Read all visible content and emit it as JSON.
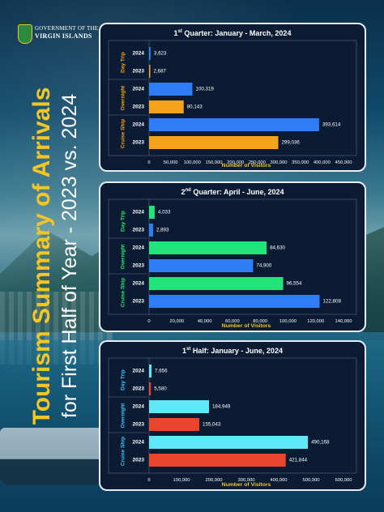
{
  "header": {
    "logo_line1": "GOVERNMENT OF THE",
    "logo_line2": "VIRGIN ISLANDS",
    "title_line1": "Tourism Summary of Arrivals",
    "title_line2": "for First Half of Year - 2023 vs. 2024"
  },
  "colors": {
    "title_yellow": "#f5c524",
    "panel_bg": "#0b1b33",
    "label_yellow": "#f5a31a",
    "label_green": "#2ee86a",
    "label_cyan": "#41c6f0"
  },
  "chart_data": [
    {
      "type": "bar",
      "orientation": "horizontal",
      "title_prefix": "1",
      "title_sup": "st",
      "title_rest": " Quarter: January - March, 2024",
      "xlabel": "Number of Visitors",
      "xlim": [
        0,
        450000
      ],
      "xticks": [
        "0",
        "50,000",
        "100,000",
        "150,000",
        "200,000",
        "250,000",
        "300,000",
        "350,000",
        "400,000",
        "450,000"
      ],
      "groups": [
        "Day Trip",
        "Overnight",
        "Cruise Ship"
      ],
      "group_label_color": "#f5a31a",
      "bars": [
        {
          "group": "Day Trip",
          "year": "2024",
          "value": 3623,
          "label": "3,623",
          "color": "#2f7df6"
        },
        {
          "group": "Day Trip",
          "year": "2023",
          "value": 2687,
          "label": "2,687",
          "color": "#f5a31a"
        },
        {
          "group": "Overnight",
          "year": "2024",
          "value": 100319,
          "label": "100,319",
          "color": "#2f7df6"
        },
        {
          "group": "Overnight",
          "year": "2023",
          "value": 80143,
          "label": "80,143",
          "color": "#f5a31a"
        },
        {
          "group": "Cruise Ship",
          "year": "2024",
          "value": 393614,
          "label": "393,614",
          "color": "#2f7df6"
        },
        {
          "group": "Cruise Ship",
          "year": "2023",
          "value": 299036,
          "label": "299,036",
          "color": "#f5a31a"
        }
      ]
    },
    {
      "type": "bar",
      "orientation": "horizontal",
      "title_prefix": "2",
      "title_sup": "nd",
      "title_rest": " Quarter: April - June, 2024",
      "xlabel": "Number of Visitors",
      "xlim": [
        0,
        140000
      ],
      "xticks": [
        "0",
        "20,000",
        "40,000",
        "60,000",
        "80,000",
        "100,000",
        "120,000",
        "140,000"
      ],
      "groups": [
        "Day Trip",
        "Overnight",
        "Cruise Ship"
      ],
      "group_label_color": "#2ee86a",
      "bars": [
        {
          "group": "Day Trip",
          "year": "2024",
          "value": 4033,
          "label": "4,033",
          "color": "#22e57a"
        },
        {
          "group": "Day Trip",
          "year": "2023",
          "value": 2893,
          "label": "2,893",
          "color": "#2f7df6"
        },
        {
          "group": "Overnight",
          "year": "2024",
          "value": 84630,
          "label": "84,630",
          "color": "#22e57a"
        },
        {
          "group": "Overnight",
          "year": "2023",
          "value": 74900,
          "label": "74,900",
          "color": "#2f7df6"
        },
        {
          "group": "Cruise Ship",
          "year": "2024",
          "value": 96554,
          "label": "96,554",
          "color": "#22e57a"
        },
        {
          "group": "Cruise Ship",
          "year": "2023",
          "value": 122808,
          "label": "122,808",
          "color": "#2f7df6"
        }
      ]
    },
    {
      "type": "bar",
      "orientation": "horizontal",
      "title_prefix": "1",
      "title_sup": "st",
      "title_rest": " Half: January - June, 2024",
      "xlabel": "Number of Visitors",
      "xlim": [
        0,
        600000
      ],
      "xticks": [
        "0",
        "100,000",
        "200,000",
        "300,000",
        "400,000",
        "500,000",
        "600,000"
      ],
      "groups": [
        "Day Trip",
        "Overnight",
        "Cruise Ship"
      ],
      "group_label_color": "#41c6f0",
      "bars": [
        {
          "group": "Day Trip",
          "year": "2024",
          "value": 7656,
          "label": "7,656",
          "color": "#5fe6f7"
        },
        {
          "group": "Day Trip",
          "year": "2023",
          "value": 5580,
          "label": "5,580",
          "color": "#e8452c"
        },
        {
          "group": "Overnight",
          "year": "2024",
          "value": 184949,
          "label": "184,949",
          "color": "#5fe6f7"
        },
        {
          "group": "Overnight",
          "year": "2023",
          "value": 155043,
          "label": "155,043",
          "color": "#e8452c"
        },
        {
          "group": "Cruise Ship",
          "year": "2024",
          "value": 490168,
          "label": "490,168",
          "color": "#5fe6f7"
        },
        {
          "group": "Cruise Ship",
          "year": "2023",
          "value": 421844,
          "label": "421,844",
          "color": "#e8452c"
        }
      ]
    }
  ]
}
